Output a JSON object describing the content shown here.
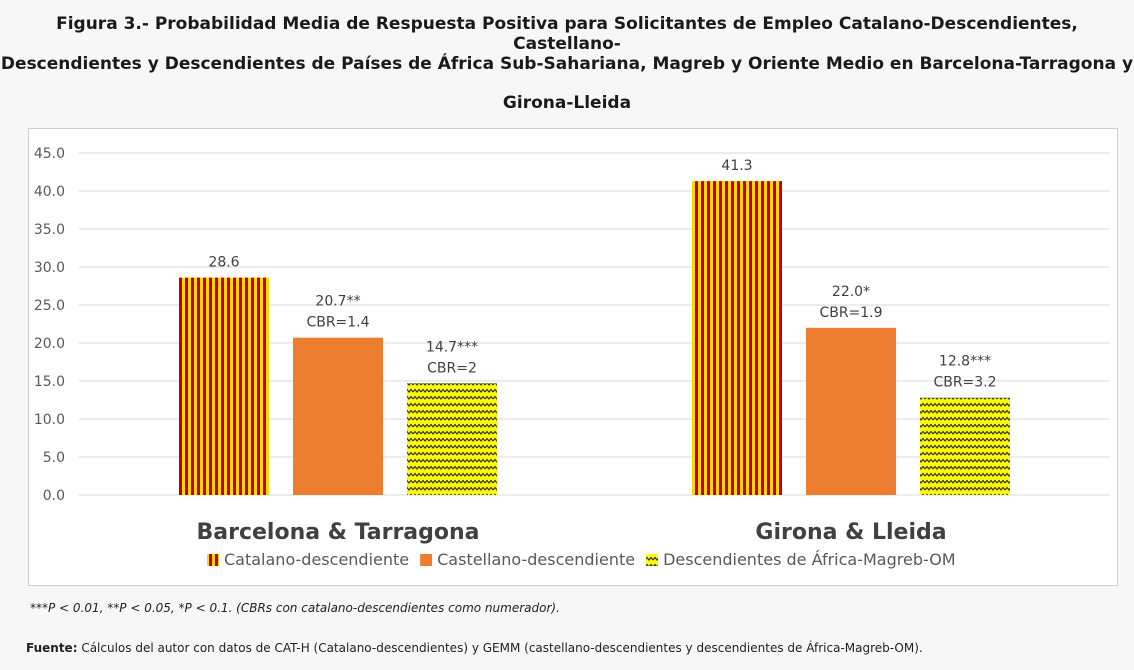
{
  "title_lines": [
    "Figura 3.- Probabilidad Media de Respuesta Positiva para Solicitantes de Empleo Catalano-Descendientes, Castellano-",
    "Descendientes y Descendientes de Países de África Sub-Sahariana, Magreb y Oriente Medio en Barcelona-Tarragona y",
    "Girona-Lleida"
  ],
  "chart_data": {
    "type": "bar",
    "title": "Figura 3.- Probabilidad Media de Respuesta Positiva para Solicitantes de Empleo Catalano-Descendientes, Castellano-Descendientes y Descendientes de Países de África Sub-Sahariana, Magreb y Oriente Medio en Barcelona-Tarragona y Girona-Lleida",
    "categories": [
      "Barcelona & Tarragona",
      "Girona & Lleida"
    ],
    "ylim": [
      0,
      45
    ],
    "yticks": [
      "0.0",
      "5.0",
      "10.0",
      "15.0",
      "20.0",
      "25.0",
      "30.0",
      "35.0",
      "40.0",
      "45.0"
    ],
    "grid": true,
    "legend_position": "bottom",
    "xlabel": "",
    "ylabel": "",
    "series": [
      {
        "name": "Catalano-descendiente",
        "values": [
          28.6,
          41.3
        ],
        "labels": [
          [
            "28.6"
          ],
          [
            "41.3"
          ]
        ],
        "color": "#c00000",
        "color2": "#ffd700",
        "pattern": "vertical-stripes"
      },
      {
        "name": "Castellano-descendiente",
        "values": [
          20.7,
          22.0
        ],
        "labels": [
          [
            "20.7**",
            "CBR=1.4"
          ],
          [
            "22.0*",
            "CBR=1.9"
          ]
        ],
        "color": "#ed7d31",
        "pattern": "solid"
      },
      {
        "name": "Descendientes de África-Magreb-OM",
        "values": [
          14.7,
          12.8
        ],
        "labels": [
          [
            "14.7***",
            "CBR=2"
          ],
          [
            "12.8***",
            "CBR=3.2"
          ]
        ],
        "color": "#ffff00",
        "color2": "#3a3a3a",
        "pattern": "zigzag"
      }
    ]
  },
  "note": "***P < 0.01, **P < 0.05, *P < 0.1. (CBRs con catalano-descendientes como numerador).",
  "source": {
    "label": "Fuente:",
    "text": " Cálculos del autor con datos de CAT-H (Catalano-descendientes) y GEMM (castellano-descendientes y descendientes de África-Magreb-OM)."
  }
}
